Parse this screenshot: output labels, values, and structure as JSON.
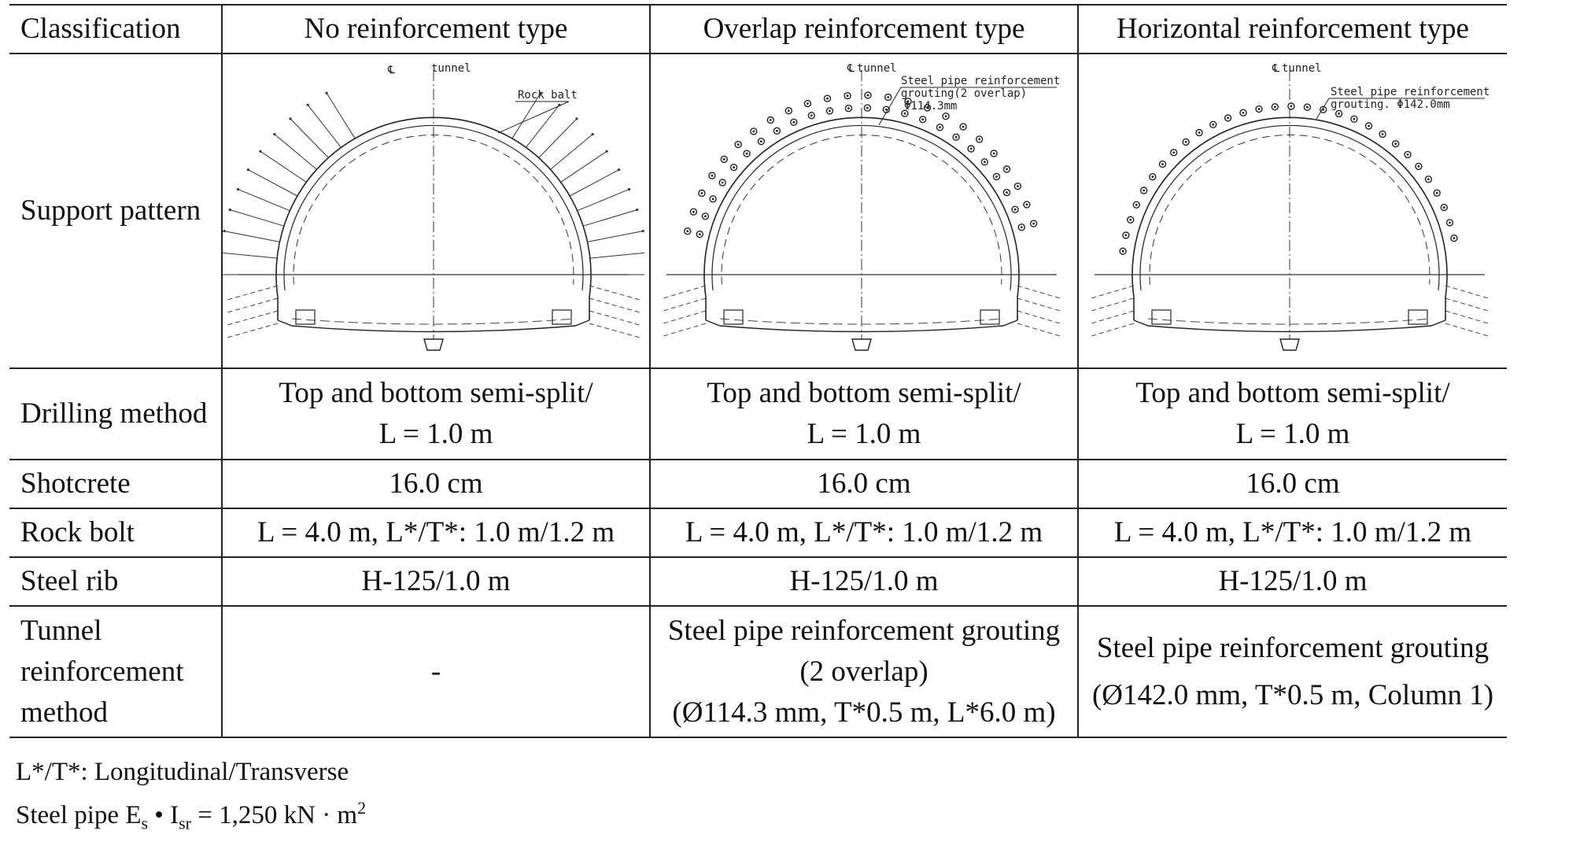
{
  "table": {
    "headers": [
      "Classification",
      "No reinforcement type",
      "Overlap reinforcement type",
      "Horizontal reinforcement type"
    ],
    "support_pattern_label": "Support pattern",
    "drawings": {
      "centerline_label": "tunnel",
      "no_reinforcement": {
        "callout": "Rock balt"
      },
      "overlap": {
        "callout_line1": "Steel pipe reinforcement",
        "callout_line2": "grouting(2 overlap)",
        "callout_line3": "Φ114.3mm"
      },
      "horizontal": {
        "callout_line1": "Steel pipe reinforcement",
        "callout_line2": "grouting. Φ142.0mm"
      }
    },
    "drilling_method": {
      "label": "Drilling method",
      "values": [
        [
          "Top and bottom semi-split/",
          "L = 1.0 m"
        ],
        [
          "Top and bottom semi-split/",
          "L = 1.0 m"
        ],
        [
          "Top and bottom semi-split/",
          "L = 1.0 m"
        ]
      ]
    },
    "shotcrete": {
      "label": "Shotcrete",
      "values": [
        "16.0 cm",
        "16.0 cm",
        "16.0 cm"
      ]
    },
    "rock_bolt": {
      "label": "Rock bolt",
      "values": [
        "L = 4.0 m, L*/T*: 1.0 m/1.2 m",
        "L = 4.0 m, L*/T*: 1.0 m/1.2 m",
        "L = 4.0 m, L*/T*: 1.0 m/1.2 m"
      ]
    },
    "steel_rib": {
      "label": "Steel rib",
      "values": [
        "H-125/1.0 m",
        "H-125/1.0 m",
        "H-125/1.0 m"
      ]
    },
    "tunnel_reinforcement": {
      "label": [
        "Tunnel",
        "reinforcement",
        "method"
      ],
      "none": "-",
      "overlap": [
        "Steel pipe reinforcement grouting",
        "(2 overlap)",
        "(Ø114.3 mm, T*0.5 m, L*6.0 m)"
      ],
      "horizontal": [
        "Steel pipe reinforcement grouting",
        "(Ø142.0 mm, T*0.5 m, Column 1)"
      ]
    }
  },
  "notes": {
    "line1": "L*/T*: Longitudinal/Transverse",
    "line2_prefix": "Steel pipe ",
    "line2_E": "E",
    "line2_E_sub": "s",
    "line2_dot": " • ",
    "line2_I": "I",
    "line2_I_sub": "sr",
    "line2_value": " = 1,250 kN · m",
    "line2_sup": "2"
  }
}
